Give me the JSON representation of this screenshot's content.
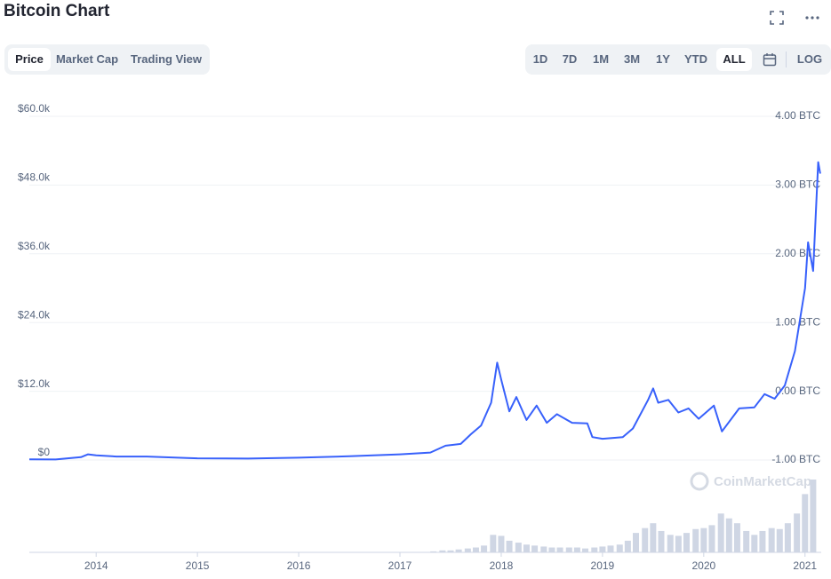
{
  "ui": {
    "title": "Bitcoin Chart",
    "tabs": [
      "Price",
      "Market Cap",
      "Trading View"
    ],
    "ranges": [
      "1D",
      "7D",
      "1M",
      "3M",
      "1Y",
      "YTD",
      "ALL"
    ],
    "log": "LOG",
    "watermark": "CoinMarketCap"
  },
  "chart_data": {
    "type": "line",
    "color": "#3861fb",
    "grid": true,
    "x": [
      2013.34,
      2013.6,
      2013.85,
      2013.92,
      2014.0,
      2014.2,
      2014.5,
      2014.9,
      2015.0,
      2015.5,
      2016.0,
      2016.5,
      2017.0,
      2017.3,
      2017.45,
      2017.6,
      2017.7,
      2017.8,
      2017.9,
      2017.96,
      2018.0,
      2018.08,
      2018.15,
      2018.25,
      2018.35,
      2018.45,
      2018.55,
      2018.7,
      2018.85,
      2018.9,
      2019.0,
      2019.2,
      2019.3,
      2019.45,
      2019.5,
      2019.55,
      2019.65,
      2019.75,
      2019.85,
      2019.95,
      2020.1,
      2020.18,
      2020.35,
      2020.5,
      2020.6,
      2020.7,
      2020.8,
      2020.9,
      2021.0,
      2021.03,
      2021.08,
      2021.13,
      2021.15
    ],
    "values": [
      120,
      100,
      500,
      1000,
      800,
      600,
      600,
      350,
      300,
      250,
      400,
      650,
      1000,
      1300,
      2500,
      2800,
      4500,
      6000,
      10000,
      17000,
      14000,
      8500,
      11000,
      7000,
      9500,
      6500,
      8000,
      6500,
      6400,
      4000,
      3700,
      4000,
      5500,
      10500,
      12500,
      10000,
      10500,
      8300,
      9000,
      7200,
      9500,
      5000,
      9000,
      9200,
      11500,
      10700,
      13000,
      19000,
      30000,
      38000,
      33000,
      52000,
      50000
    ],
    "xlim": [
      2013.34,
      2021.16
    ],
    "xticks": [
      2014,
      2015,
      2016,
      2017,
      2018,
      2019,
      2020,
      2021
    ],
    "ylim": [
      0,
      60000
    ],
    "yticks": [
      {
        "value": 0,
        "label": "$0"
      },
      {
        "value": 12000,
        "label": "$12.0k"
      },
      {
        "value": 24000,
        "label": "$24.0k"
      },
      {
        "value": 36000,
        "label": "$36.0k"
      },
      {
        "value": 48000,
        "label": "$48.0k"
      },
      {
        "value": 60000,
        "label": "$60.0k"
      }
    ],
    "y2lim": [
      -1,
      4
    ],
    "y2ticks": [
      {
        "value": -1,
        "label": "-1.00 BTC"
      },
      {
        "value": 0,
        "label": "0.00 BTC"
      },
      {
        "value": 1,
        "label": "1.00 BTC"
      },
      {
        "value": 2,
        "label": "2.00 BTC"
      },
      {
        "value": 3,
        "label": "3.00 BTC"
      },
      {
        "value": 4,
        "label": "4.00 BTC"
      }
    ],
    "volume": {
      "color": "#cfd6e4",
      "x": [
        2017.33,
        2017.42,
        2017.5,
        2017.58,
        2017.67,
        2017.75,
        2017.83,
        2017.92,
        2018.0,
        2018.08,
        2018.17,
        2018.25,
        2018.33,
        2018.42,
        2018.5,
        2018.58,
        2018.67,
        2018.75,
        2018.83,
        2018.92,
        2019.0,
        2019.08,
        2019.17,
        2019.25,
        2019.33,
        2019.42,
        2019.5,
        2019.58,
        2019.67,
        2019.75,
        2019.83,
        2019.92,
        2020.0,
        2020.08,
        2020.17,
        2020.25,
        2020.33,
        2020.42,
        2020.5,
        2020.58,
        2020.67,
        2020.75,
        2020.83,
        2020.92,
        2021.0,
        2021.08
      ],
      "values": [
        1,
        2,
        2,
        3,
        4,
        5,
        7,
        18,
        17,
        12,
        10,
        8,
        7,
        6,
        5,
        5,
        5,
        5,
        4,
        5,
        6,
        7,
        8,
        12,
        20,
        25,
        30,
        22,
        18,
        17,
        20,
        24,
        25,
        28,
        40,
        35,
        30,
        22,
        18,
        22,
        25,
        24,
        30,
        40,
        60,
        75
      ]
    }
  }
}
